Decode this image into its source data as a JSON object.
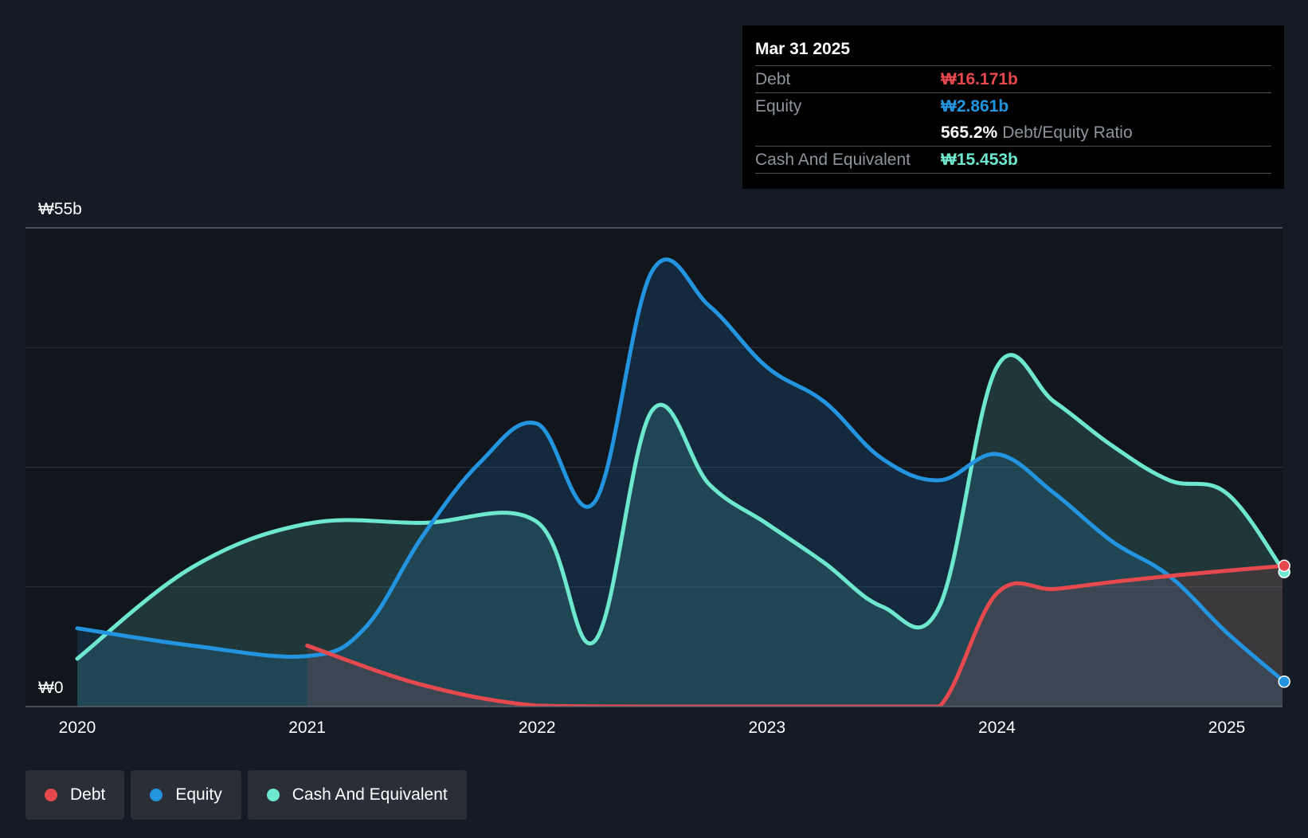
{
  "tooltip": {
    "date": "Mar 31 2025",
    "debt_label": "Debt",
    "debt_value": "₩16.171b",
    "equity_label": "Equity",
    "equity_value": "₩2.861b",
    "ratio_value": "565.2%",
    "ratio_label": "Debt/Equity Ratio",
    "cash_label": "Cash And Equivalent",
    "cash_value": "₩15.453b"
  },
  "legend": {
    "debt": "Debt",
    "equity": "Equity",
    "cash": "Cash And Equivalent"
  },
  "colors": {
    "debt": "#e5484d",
    "equity": "#2394df",
    "cash": "#6ee7cf",
    "background": "#151b24"
  },
  "chart_data": {
    "type": "area",
    "y_top_label": "₩55b",
    "y_bottom_label": "₩0",
    "ylim": [
      0,
      55
    ],
    "y_unit": "₩b",
    "x_tick_labels": [
      "2020",
      "2021",
      "2022",
      "2023",
      "2024",
      "2025"
    ],
    "xlim": [
      2019.78,
      2025.25
    ],
    "grid": true,
    "legend_position": "bottom-left",
    "series": [
      {
        "name": "Debt",
        "key": "debt",
        "points": [
          [
            2021.0,
            7.0
          ],
          [
            2021.5,
            2.5
          ],
          [
            2022.0,
            0.1
          ],
          [
            2022.5,
            0.0
          ],
          [
            2023.0,
            0.0
          ],
          [
            2023.5,
            0.0
          ],
          [
            2023.75,
            0.0
          ],
          [
            2024.0,
            13.0
          ],
          [
            2024.25,
            13.5
          ],
          [
            2024.5,
            14.3
          ],
          [
            2024.75,
            15.0
          ],
          [
            2025.0,
            15.6
          ],
          [
            2025.25,
            16.171
          ]
        ]
      },
      {
        "name": "Equity",
        "key": "equity",
        "points": [
          [
            2020.0,
            9.0
          ],
          [
            2020.5,
            7.0
          ],
          [
            2021.0,
            5.8
          ],
          [
            2021.25,
            9.0
          ],
          [
            2021.5,
            19.5
          ],
          [
            2021.75,
            28.0
          ],
          [
            2022.0,
            32.5
          ],
          [
            2022.25,
            23.5
          ],
          [
            2022.5,
            50.0
          ],
          [
            2022.75,
            46.0
          ],
          [
            2023.0,
            39.0
          ],
          [
            2023.25,
            35.0
          ],
          [
            2023.5,
            28.5
          ],
          [
            2023.75,
            26.0
          ],
          [
            2024.0,
            29.0
          ],
          [
            2024.25,
            24.5
          ],
          [
            2024.5,
            19.0
          ],
          [
            2024.75,
            15.0
          ],
          [
            2025.0,
            8.5
          ],
          [
            2025.25,
            2.861
          ]
        ]
      },
      {
        "name": "Cash And Equivalent",
        "key": "cash",
        "points": [
          [
            2020.0,
            5.5
          ],
          [
            2020.5,
            16.0
          ],
          [
            2021.0,
            21.0
          ],
          [
            2021.5,
            21.1
          ],
          [
            2022.0,
            21.2
          ],
          [
            2022.25,
            7.5
          ],
          [
            2022.5,
            34.0
          ],
          [
            2022.75,
            25.5
          ],
          [
            2023.0,
            21.0
          ],
          [
            2023.25,
            16.5
          ],
          [
            2023.5,
            11.5
          ],
          [
            2023.75,
            11.5
          ],
          [
            2024.0,
            39.0
          ],
          [
            2024.25,
            35.0
          ],
          [
            2024.5,
            30.0
          ],
          [
            2024.75,
            26.0
          ],
          [
            2025.0,
            24.5
          ],
          [
            2025.25,
            15.453
          ]
        ]
      }
    ]
  }
}
